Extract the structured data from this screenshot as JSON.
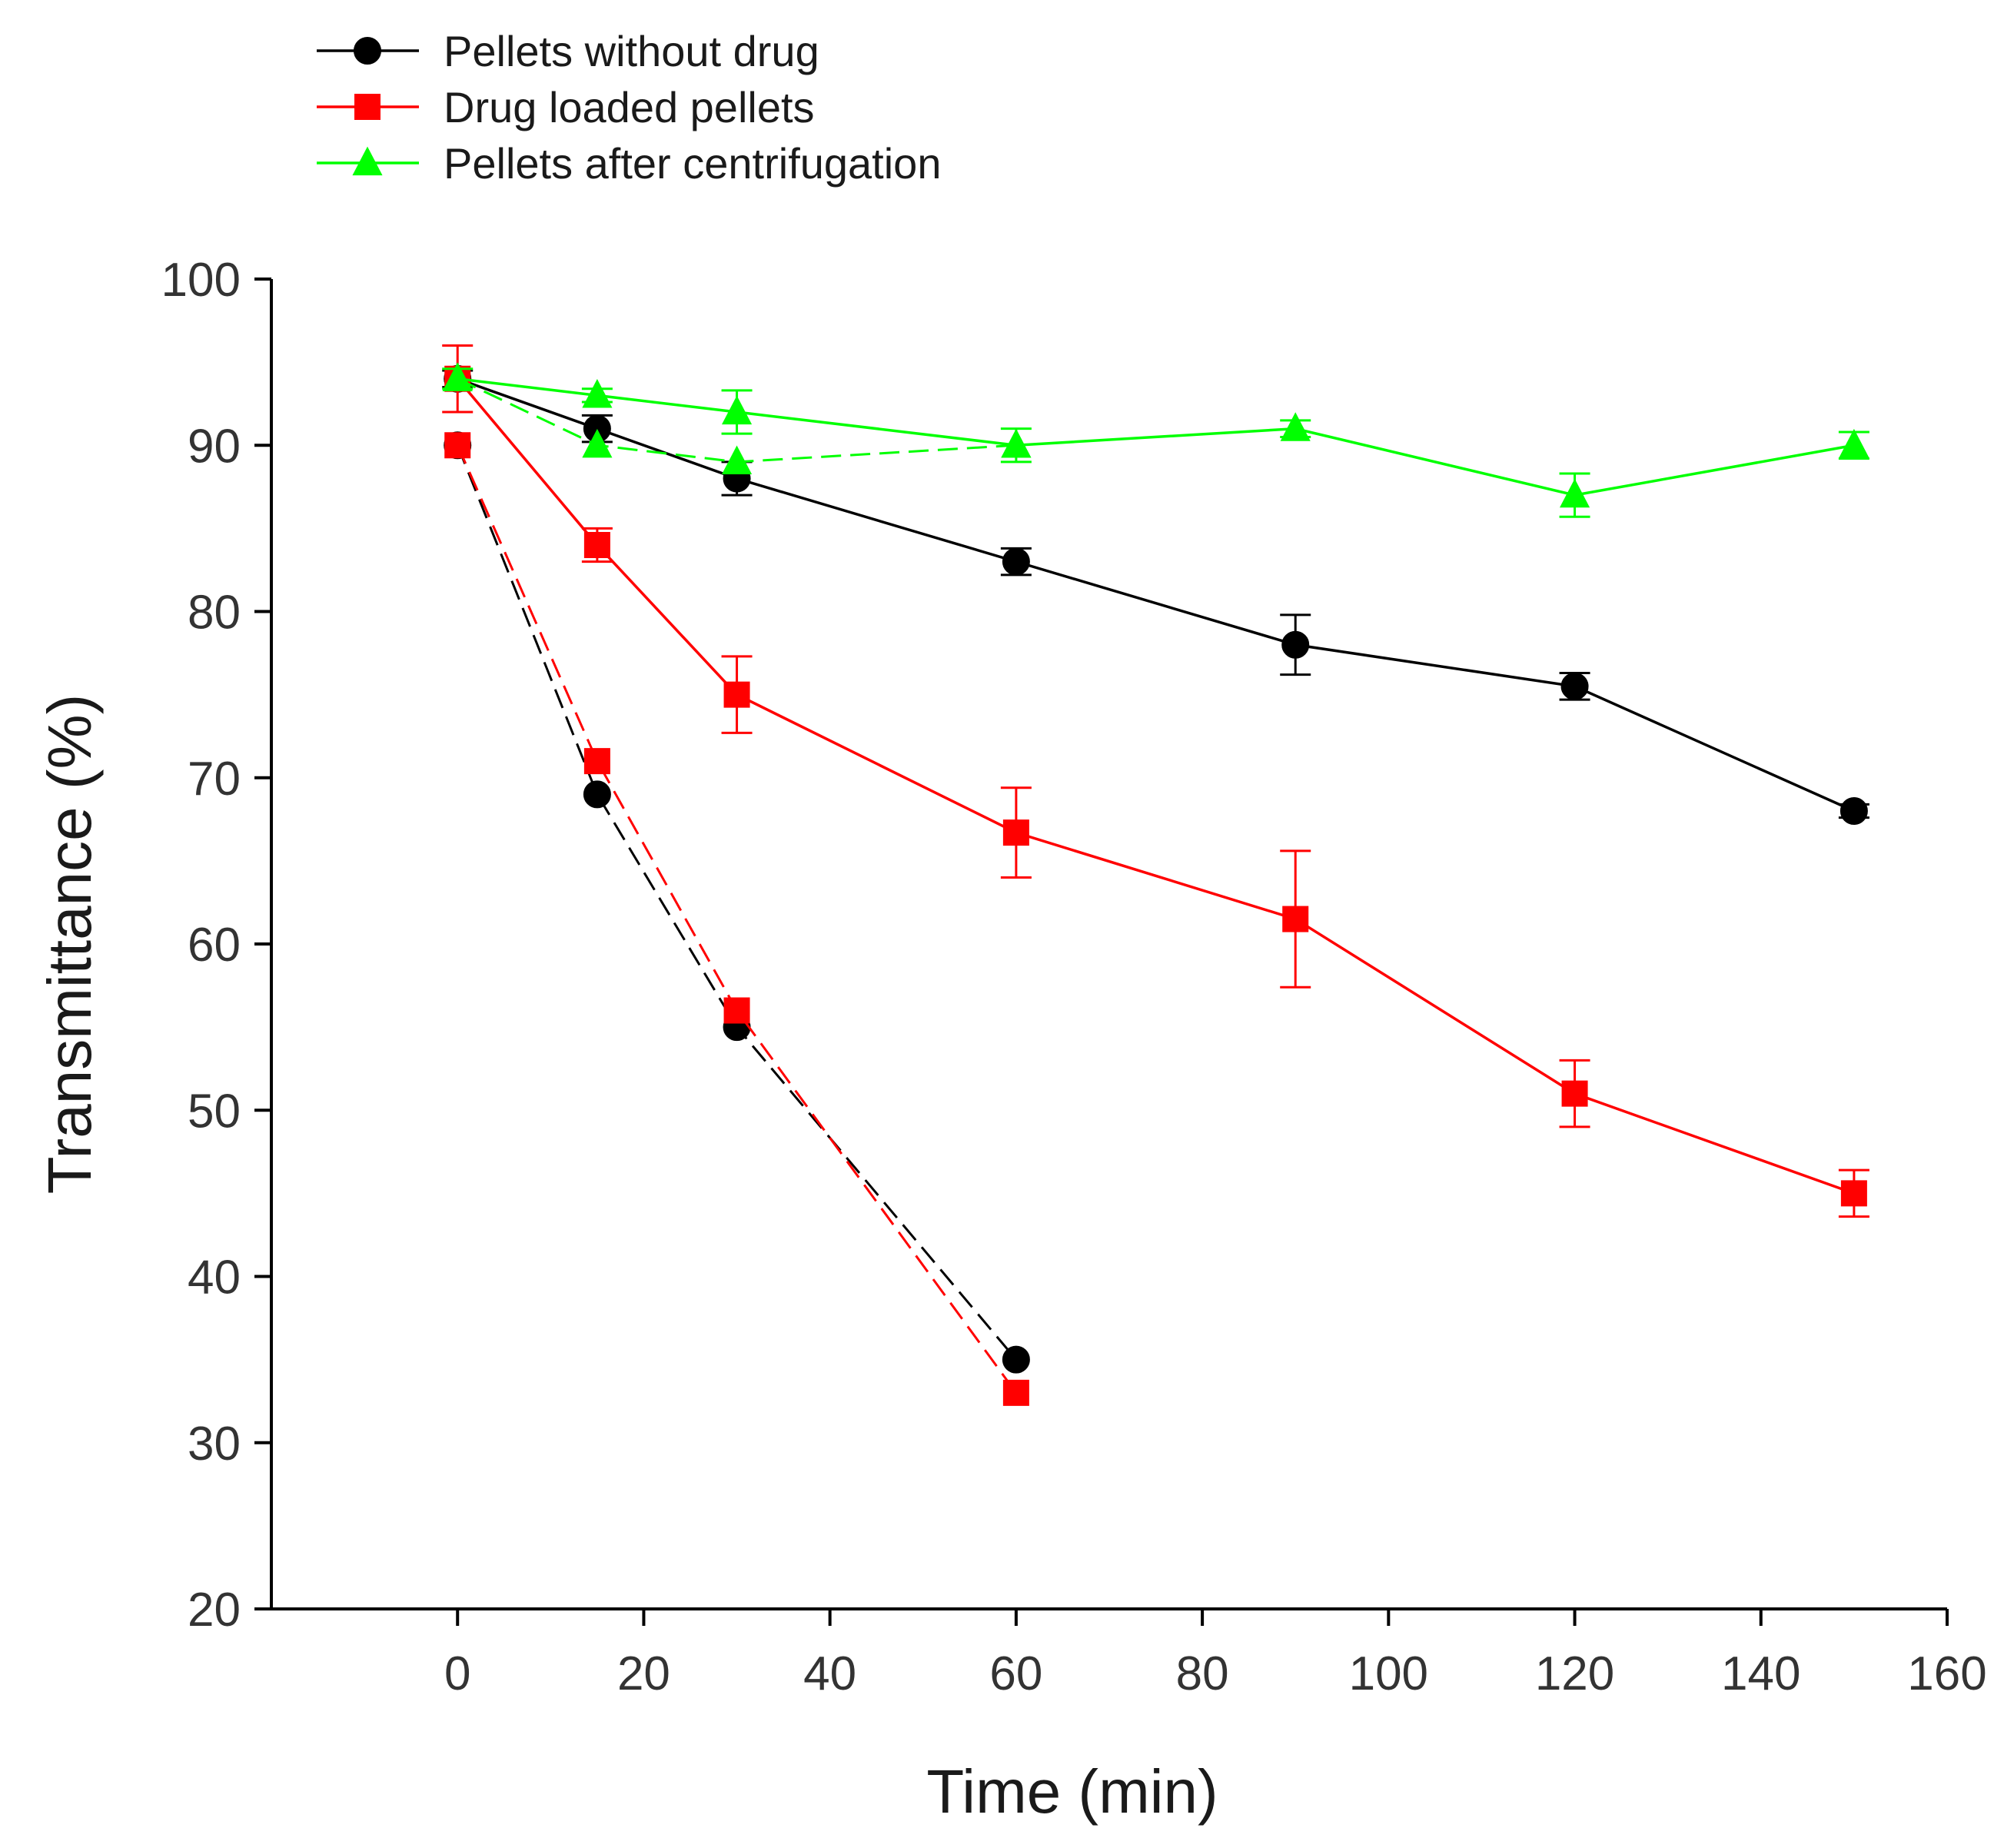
{
  "chart_data": {
    "type": "line",
    "title": "",
    "xlabel": "Time (min)",
    "ylabel": "Transmittance (%)",
    "xlim": [
      -20,
      160
    ],
    "ylim": [
      20,
      100
    ],
    "xticks": [
      0,
      20,
      40,
      60,
      80,
      100,
      120,
      140,
      160
    ],
    "yticks": [
      20,
      30,
      40,
      50,
      60,
      70,
      80,
      90,
      100
    ],
    "xtick_labels": [
      "0",
      "20",
      "40",
      "60",
      "80",
      "100",
      "120",
      "140",
      "160"
    ],
    "ytick_labels": [
      "20",
      "30",
      "40",
      "50",
      "60",
      "70",
      "80",
      "90",
      "100"
    ],
    "grid": false,
    "legend_position": "top-left, above plot",
    "series": [
      {
        "name": "Pellets without drug",
        "color": "#000000",
        "marker": "circle",
        "dashed": false,
        "in_legend": true,
        "x": [
          0,
          15,
          30,
          60,
          90,
          120,
          150
        ],
        "y": [
          94,
          91,
          88,
          83,
          78,
          75.5,
          68
        ],
        "err": [
          0.5,
          0.8,
          1.0,
          0.8,
          1.8,
          0.8,
          0.4
        ]
      },
      {
        "name": "Drug loaded pellets",
        "color": "#ff0000",
        "marker": "square",
        "dashed": false,
        "in_legend": true,
        "x": [
          0,
          15,
          30,
          60,
          90,
          120,
          150
        ],
        "y": [
          94,
          84,
          75,
          66.7,
          61.5,
          51,
          45
        ],
        "err": [
          2.0,
          1.0,
          2.3,
          2.7,
          4.1,
          2.0,
          1.4
        ]
      },
      {
        "name": "Pellets after centrifugation",
        "color": "#00ff00",
        "marker": "triangle",
        "dashed": false,
        "in_legend": true,
        "x": [
          0,
          15,
          30,
          60,
          90,
          120,
          150
        ],
        "y": [
          94,
          93,
          92,
          90,
          91,
          87,
          90
        ],
        "err": [
          0.6,
          0.4,
          1.3,
          1.0,
          0.5,
          1.3,
          0.8
        ]
      },
      {
        "name": "Pellets without drug (dashed)",
        "color": "#000000",
        "marker": "circle",
        "dashed": true,
        "in_legend": false,
        "x": [
          0,
          15,
          30,
          60
        ],
        "y": [
          90,
          69,
          55,
          35
        ],
        "err": []
      },
      {
        "name": "Drug loaded pellets (dashed)",
        "color": "#ff0000",
        "marker": "square",
        "dashed": true,
        "in_legend": false,
        "x": [
          0,
          15,
          30,
          60
        ],
        "y": [
          90,
          71,
          56,
          33
        ],
        "err": []
      },
      {
        "name": "Pellets after centrifugation (dashed)",
        "color": "#00ff00",
        "marker": "triangle",
        "dashed": true,
        "in_legend": false,
        "x": [
          0,
          15,
          30,
          60
        ],
        "y": [
          94,
          90,
          89,
          90
        ],
        "err": []
      }
    ]
  }
}
